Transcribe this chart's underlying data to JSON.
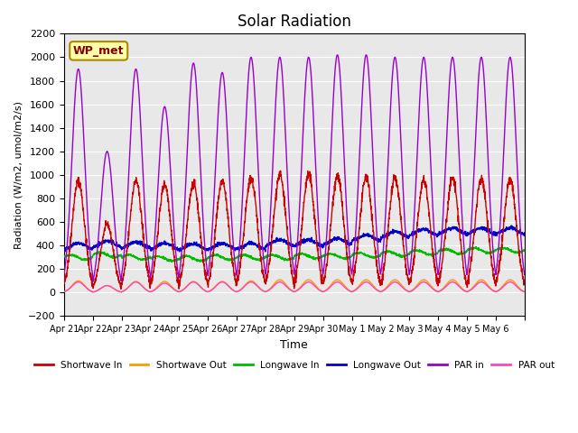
{
  "title": "Solar Radiation",
  "ylabel": "Radiation (W/m2, umol/m2/s)",
  "xlabel": "Time",
  "ylim": [
    -200,
    2200
  ],
  "yticks": [
    -200,
    0,
    200,
    400,
    600,
    800,
    1000,
    1200,
    1400,
    1600,
    1800,
    2000,
    2200
  ],
  "annotation": "WP_met",
  "background_color": "#e8e8e8",
  "xtick_labels": [
    "Apr 21",
    "Apr 22",
    "Apr 23",
    "Apr 24",
    "Apr 25",
    "Apr 26",
    "Apr 27",
    "Apr 28",
    "Apr 29",
    "Apr 30",
    "May 1",
    "May 2",
    "May 3",
    "May 4",
    "May 5",
    "May 6"
  ],
  "series": {
    "shortwave_in": {
      "color": "#cc0000",
      "label": "Shortwave In"
    },
    "shortwave_out": {
      "color": "#ff9900",
      "label": "Shortwave Out"
    },
    "longwave_in": {
      "color": "#00bb00",
      "label": "Longwave In"
    },
    "longwave_out": {
      "color": "#0000cc",
      "label": "Longwave Out"
    },
    "par_in": {
      "color": "#9900cc",
      "label": "PAR in"
    },
    "par_out": {
      "color": "#ff44bb",
      "label": "PAR out"
    }
  },
  "n_days": 16,
  "points_per_day": 144
}
